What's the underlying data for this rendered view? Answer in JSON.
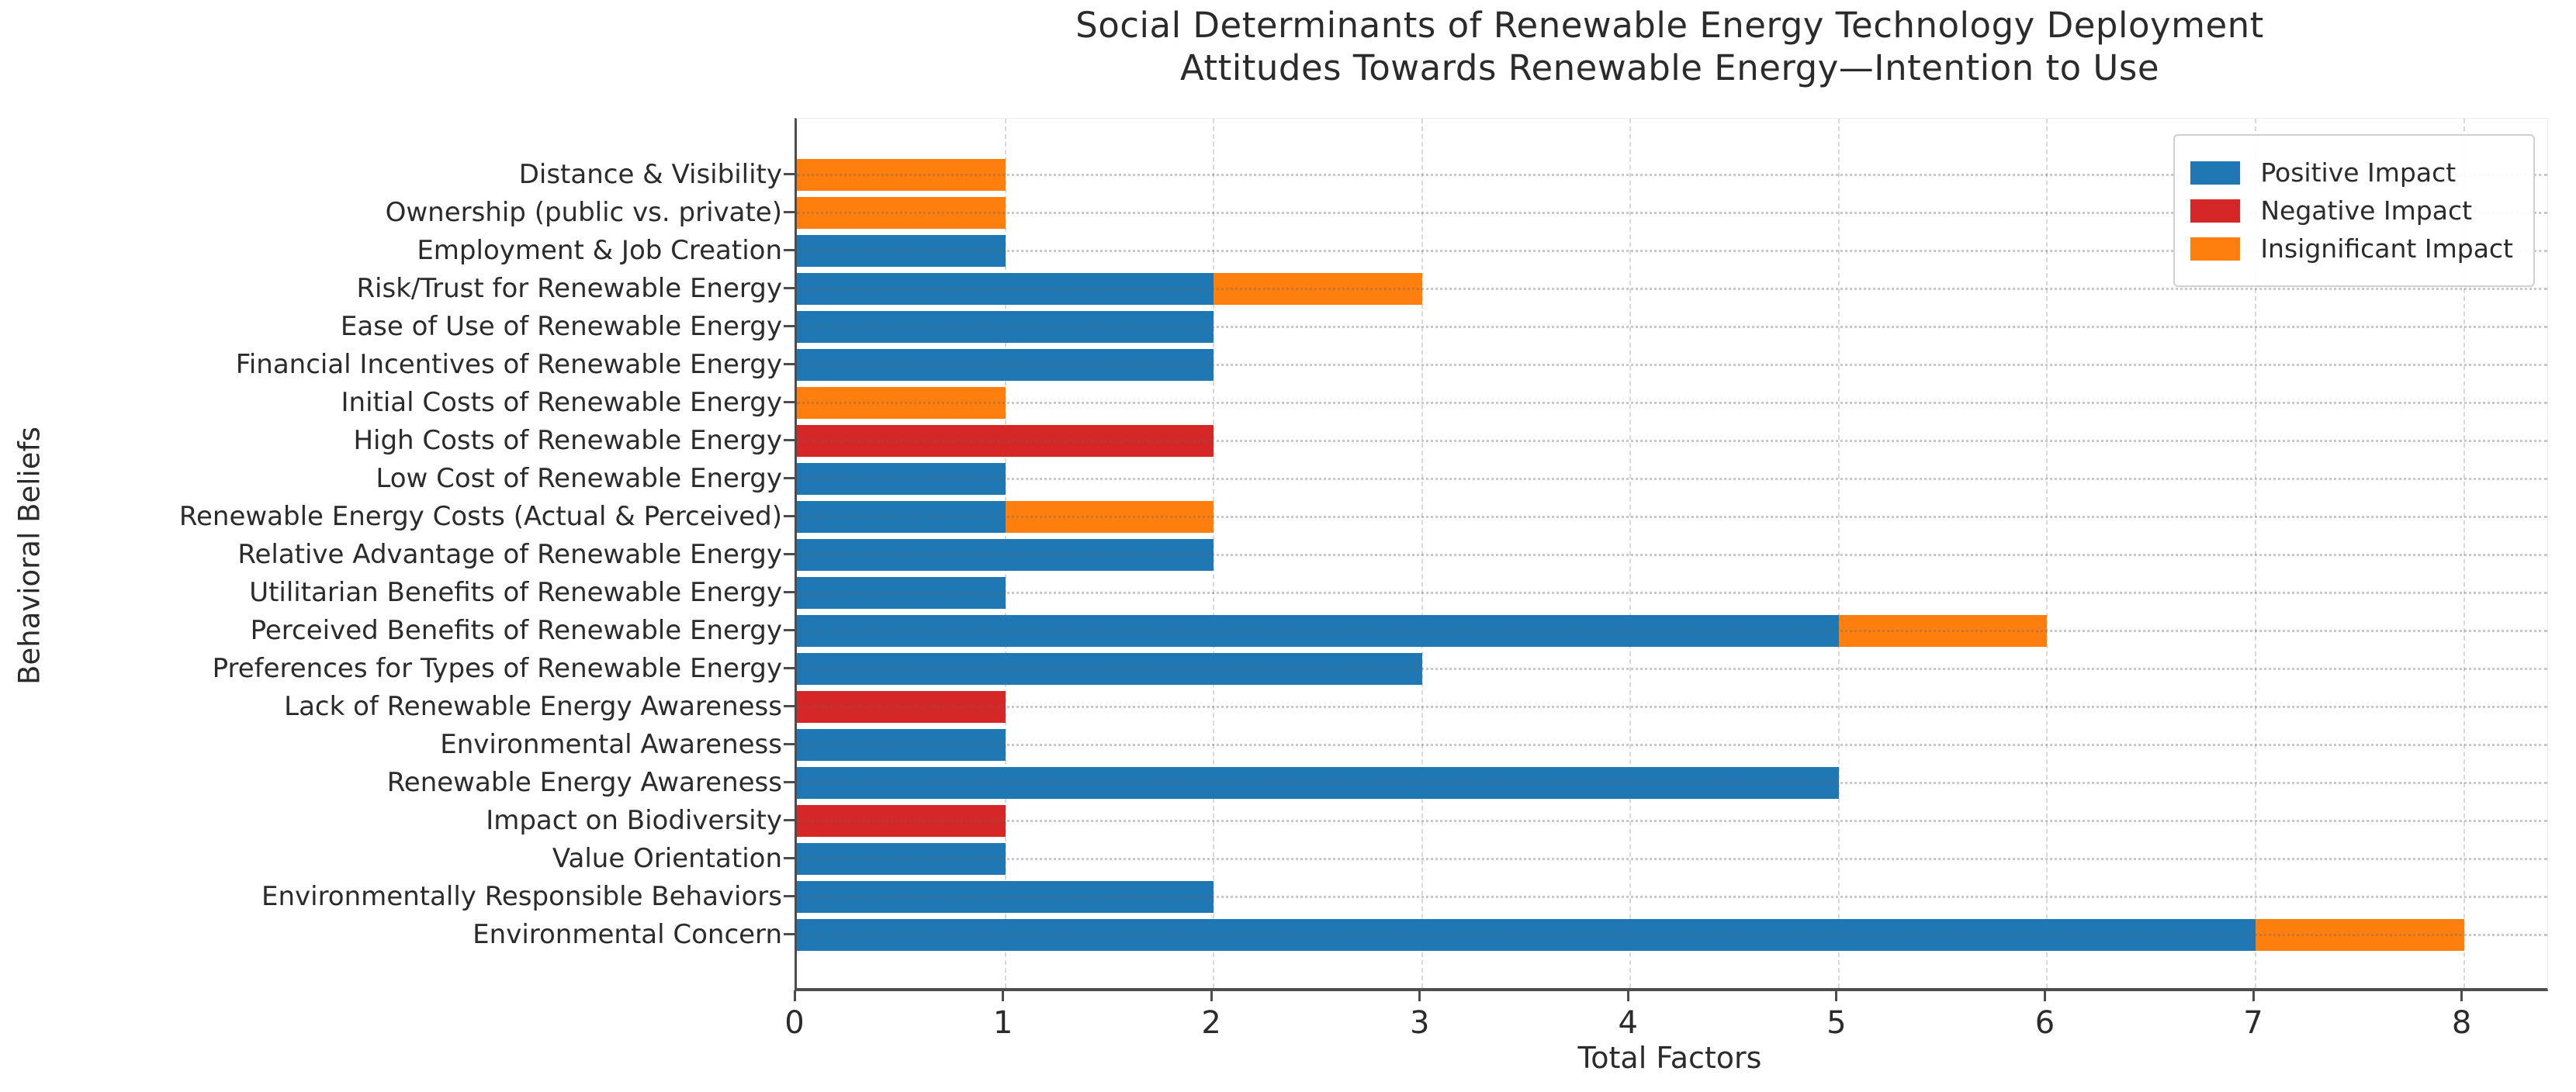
{
  "title": {
    "line1": "Social Determinants of Renewable Energy Technology Deployment",
    "line2": "Attitudes Towards Renewable Energy—Intention to Use"
  },
  "chart_data": {
    "type": "bar",
    "orientation": "horizontal",
    "stacked": true,
    "title": "Social Determinants of Renewable Energy Technology Deployment — Attitudes Towards Renewable Energy—Intention to Use",
    "xlabel": "Total Factors",
    "ylabel": "Behavioral Beliefs",
    "xlim": [
      0,
      8.4
    ],
    "xticks": [
      0,
      1,
      2,
      3,
      4,
      5,
      6,
      7,
      8
    ],
    "grid": true,
    "legend_position": "upper right",
    "categories": [
      "Distance & Visibility",
      "Ownership (public vs. private)",
      "Employment & Job Creation",
      "Risk/Trust for Renewable Energy",
      "Ease of Use of Renewable Energy",
      "Financial Incentives of Renewable Energy",
      "Initial Costs of Renewable Energy",
      "High Costs of Renewable Energy",
      "Low Cost of Renewable Energy",
      "Renewable Energy Costs (Actual & Perceived)",
      "Relative Advantage of Renewable Energy",
      "Utilitarian Benefits of Renewable Energy",
      "Perceived Benefits of Renewable Energy",
      "Preferences for Types of Renewable Energy",
      "Lack of Renewable Energy Awareness",
      "Environmental Awareness",
      "Renewable Energy Awareness",
      "Impact on Biodiversity",
      "Value Orientation",
      "Environmentally Responsible Behaviors",
      "Environmental Concern"
    ],
    "series": [
      {
        "name": "Positive Impact",
        "color": "#1f77b4",
        "values": [
          0,
          0,
          1,
          2,
          2,
          2,
          0,
          0,
          1,
          1,
          2,
          1,
          5,
          3,
          0,
          1,
          5,
          0,
          1,
          2,
          7
        ]
      },
      {
        "name": "Negative Impact",
        "color": "#d62728",
        "values": [
          0,
          0,
          0,
          0,
          0,
          0,
          0,
          2,
          0,
          0,
          0,
          0,
          0,
          0,
          1,
          0,
          0,
          1,
          0,
          0,
          0
        ]
      },
      {
        "name": "Insignificant Impact",
        "color": "#ff7f0e",
        "values": [
          1,
          1,
          0,
          1,
          0,
          0,
          1,
          0,
          0,
          1,
          0,
          0,
          1,
          0,
          0,
          0,
          0,
          0,
          0,
          0,
          1
        ]
      }
    ]
  }
}
